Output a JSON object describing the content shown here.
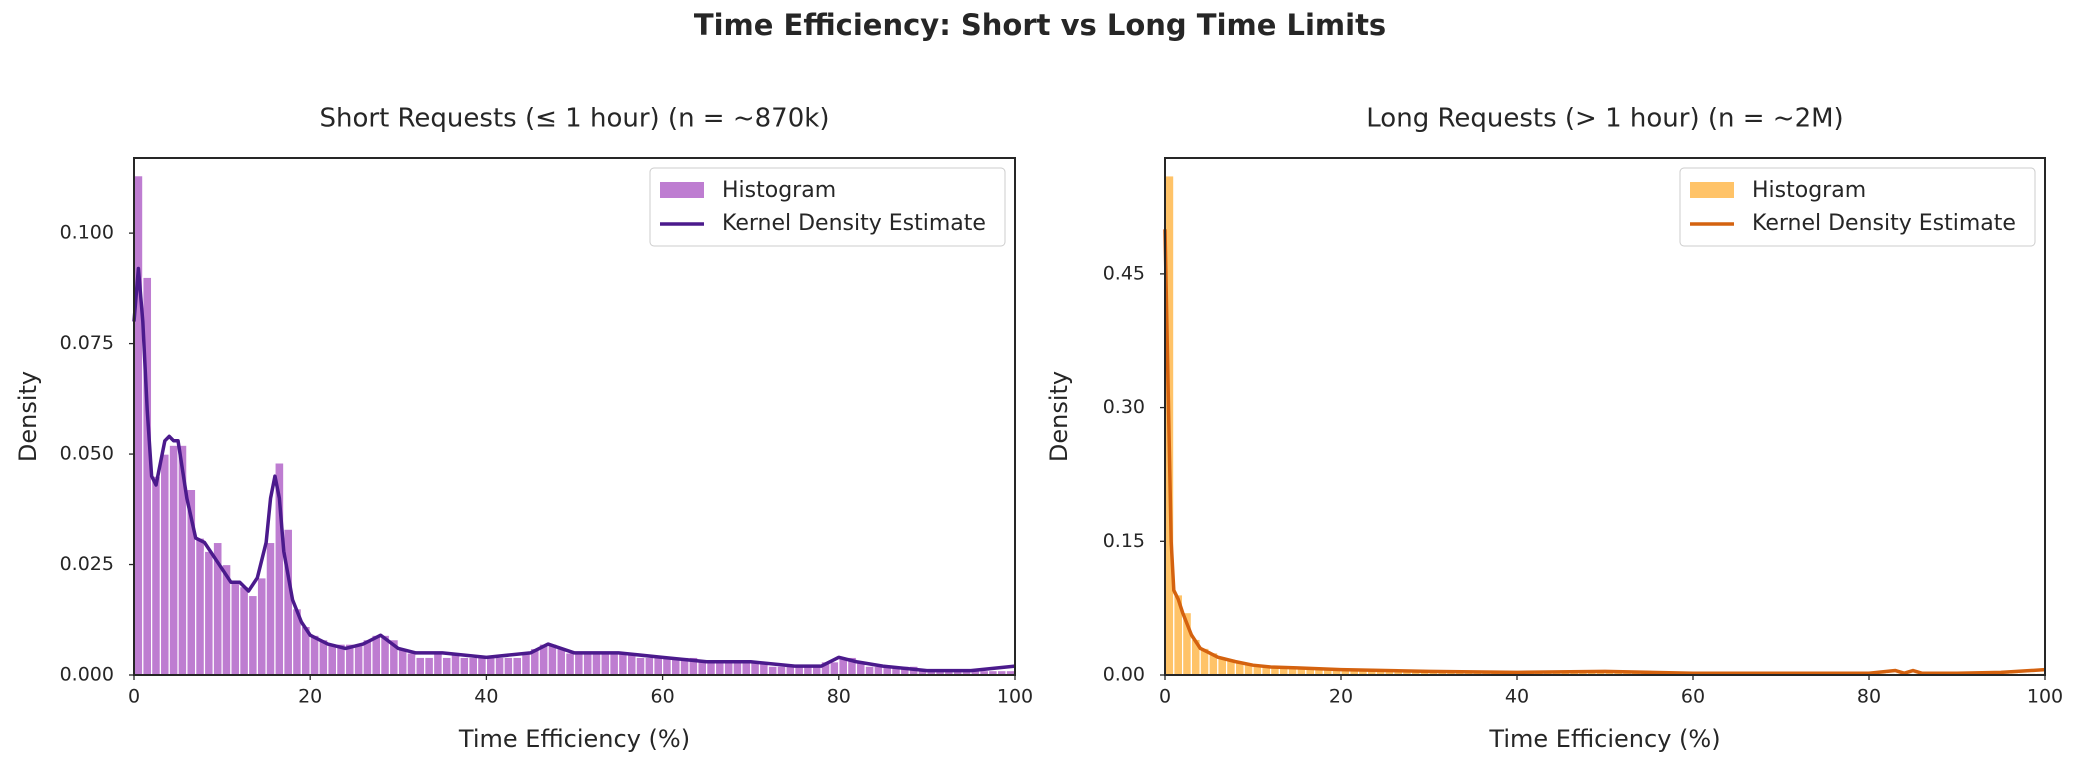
{
  "title": "Time Efficiency: Short vs Long Time Limits",
  "chart_data": [
    {
      "type": "histogram",
      "title": "Short Requests (≤ 1 hour) (n = ~870k)",
      "xlabel": "Time Efficiency (%)",
      "ylabel": "Density",
      "bins": [
        0,
        1,
        2,
        3,
        4,
        5,
        6,
        7,
        8,
        9,
        10,
        11,
        12,
        13,
        14,
        15,
        16,
        17,
        18,
        19,
        20,
        21,
        22,
        23,
        24,
        25,
        26,
        27,
        28,
        29,
        30,
        31,
        32,
        33,
        34,
        35,
        36,
        37,
        38,
        39,
        40,
        41,
        42,
        43,
        44,
        45,
        46,
        47,
        48,
        49,
        50,
        51,
        52,
        53,
        54,
        55,
        56,
        57,
        58,
        59,
        60,
        61,
        62,
        63,
        64,
        65,
        66,
        67,
        68,
        69,
        70,
        71,
        72,
        73,
        74,
        75,
        76,
        77,
        78,
        79,
        80,
        81,
        82,
        83,
        84,
        85,
        86,
        87,
        88,
        89,
        90,
        91,
        92,
        93,
        94,
        95,
        96,
        97,
        98,
        99,
        100
      ],
      "series": [
        {
          "name": "Histogram",
          "color": "#b366c9",
          "values": [
            0.113,
            0.09,
            0.045,
            0.05,
            0.052,
            0.052,
            0.042,
            0.031,
            0.028,
            0.03,
            0.025,
            0.021,
            0.02,
            0.018,
            0.022,
            0.03,
            0.048,
            0.033,
            0.015,
            0.011,
            0.009,
            0.008,
            0.007,
            0.007,
            0.007,
            0.007,
            0.008,
            0.009,
            0.009,
            0.008,
            0.006,
            0.005,
            0.004,
            0.004,
            0.005,
            0.004,
            0.005,
            0.004,
            0.004,
            0.004,
            0.004,
            0.004,
            0.004,
            0.004,
            0.005,
            0.006,
            0.007,
            0.007,
            0.006,
            0.005,
            0.005,
            0.005,
            0.005,
            0.005,
            0.005,
            0.005,
            0.005,
            0.004,
            0.004,
            0.004,
            0.004,
            0.004,
            0.004,
            0.004,
            0.003,
            0.003,
            0.003,
            0.003,
            0.003,
            0.003,
            0.003,
            0.003,
            0.002,
            0.002,
            0.002,
            0.002,
            0.002,
            0.002,
            0.003,
            0.003,
            0.004,
            0.004,
            0.003,
            0.002,
            0.002,
            0.002,
            0.002,
            0.002,
            0.002,
            0.001,
            0.001,
            0.001,
            0.001,
            0.001,
            0.001,
            0.001,
            0.001,
            0.001,
            0.001,
            0.001
          ]
        }
      ],
      "kde": {
        "name": "Kernel Density Estimate",
        "color": "#4b1a8c",
        "x": [
          0,
          0.5,
          1,
          1.5,
          2,
          2.5,
          3,
          3.5,
          4,
          4.5,
          5,
          6,
          7,
          8,
          9,
          10,
          11,
          12,
          13,
          14,
          15,
          15.5,
          16,
          16.5,
          17,
          18,
          19,
          20,
          22,
          24,
          26,
          28,
          30,
          32,
          35,
          40,
          45,
          47,
          50,
          55,
          60,
          65,
          70,
          75,
          78,
          80,
          82,
          85,
          90,
          95,
          100
        ],
        "values": [
          0.08,
          0.092,
          0.08,
          0.06,
          0.045,
          0.043,
          0.048,
          0.053,
          0.054,
          0.053,
          0.053,
          0.04,
          0.031,
          0.03,
          0.027,
          0.024,
          0.021,
          0.021,
          0.019,
          0.022,
          0.03,
          0.04,
          0.045,
          0.04,
          0.028,
          0.017,
          0.012,
          0.009,
          0.007,
          0.006,
          0.007,
          0.009,
          0.006,
          0.005,
          0.005,
          0.004,
          0.005,
          0.007,
          0.005,
          0.005,
          0.004,
          0.003,
          0.003,
          0.002,
          0.002,
          0.004,
          0.003,
          0.002,
          0.001,
          0.001,
          0.002
        ]
      },
      "xlim": [
        0,
        100
      ],
      "ylim": [
        0,
        0.117
      ],
      "xticks": [
        0,
        20,
        40,
        60,
        80,
        100
      ],
      "yticks": [
        {
          "value": 0,
          "label": "0.000"
        },
        {
          "value": 0.025,
          "label": "0.025"
        },
        {
          "value": 0.05,
          "label": "0.050"
        },
        {
          "value": 0.075,
          "label": "0.075"
        },
        {
          "value": 0.1,
          "label": "0.100"
        }
      ],
      "legend": "upper right"
    },
    {
      "type": "histogram",
      "title": "Long Requests (> 1 hour) (n = ~2M)",
      "xlabel": "Time Efficiency (%)",
      "ylabel": "Density",
      "bins": [
        0,
        1,
        2,
        3,
        4,
        5,
        6,
        7,
        8,
        9,
        10,
        11,
        12,
        13,
        14,
        15,
        16,
        17,
        18,
        19,
        20,
        21,
        22,
        23,
        24,
        25,
        26,
        27,
        28,
        29,
        30,
        31,
        32,
        33,
        34,
        35,
        36,
        37,
        38,
        39,
        40,
        41,
        42,
        43,
        44,
        45,
        46,
        47,
        48,
        49,
        50,
        51,
        52,
        53,
        54,
        55,
        56,
        57,
        58,
        59,
        60,
        61,
        62,
        63,
        64,
        65,
        66,
        67,
        68,
        69,
        70,
        71,
        72,
        73,
        74,
        75,
        76,
        77,
        78,
        79,
        80,
        81,
        82,
        83,
        84,
        85,
        86,
        87,
        88,
        89,
        90,
        91,
        92,
        93,
        94,
        95,
        96,
        97,
        98,
        99,
        100
      ],
      "series": [
        {
          "name": "Histogram",
          "color": "#ffb84d",
          "values": [
            0.56,
            0.09,
            0.07,
            0.04,
            0.03,
            0.025,
            0.02,
            0.018,
            0.015,
            0.013,
            0.011,
            0.01,
            0.009,
            0.009,
            0.008,
            0.008,
            0.007,
            0.007,
            0.006,
            0.006,
            0.005,
            0.005,
            0.005,
            0.005,
            0.005,
            0.005,
            0.004,
            0.004,
            0.004,
            0.004,
            0.004,
            0.004,
            0.004,
            0.004,
            0.004,
            0.004,
            0.004,
            0.004,
            0.004,
            0.004,
            0.003,
            0.003,
            0.003,
            0.003,
            0.003,
            0.003,
            0.003,
            0.003,
            0.003,
            0.003,
            0.003,
            0.003,
            0.003,
            0.003,
            0.003,
            0.003,
            0.003,
            0.003,
            0.003,
            0.003,
            0.002,
            0.002,
            0.002,
            0.002,
            0.002,
            0.002,
            0.002,
            0.002,
            0.002,
            0.002,
            0.002,
            0.002,
            0.002,
            0.002,
            0.002,
            0.002,
            0.002,
            0.002,
            0.002,
            0.002,
            0.002,
            0.002,
            0.002,
            0.002,
            0.002,
            0.002,
            0.002,
            0.002,
            0.002,
            0.002,
            0.002,
            0.002,
            0.002,
            0.002,
            0.002,
            0.002,
            0.002,
            0.002,
            0.002,
            0.002
          ]
        }
      ],
      "kde": {
        "name": "Kernel Density Estimate",
        "color": "#d4620f",
        "x": [
          0,
          0.3,
          0.7,
          1,
          1.5,
          2,
          3,
          4,
          5,
          6,
          8,
          10,
          12,
          15,
          20,
          25,
          30,
          40,
          50,
          60,
          70,
          80,
          83,
          84,
          85,
          86,
          90,
          95,
          100
        ],
        "values": [
          0.5,
          0.35,
          0.15,
          0.095,
          0.085,
          0.07,
          0.045,
          0.03,
          0.025,
          0.02,
          0.015,
          0.011,
          0.009,
          0.008,
          0.006,
          0.005,
          0.004,
          0.003,
          0.004,
          0.002,
          0.002,
          0.002,
          0.005,
          0.002,
          0.005,
          0.002,
          0.002,
          0.003,
          0.006
        ]
      },
      "xlim": [
        0,
        100
      ],
      "ylim": [
        0,
        0.58
      ],
      "xticks": [
        0,
        20,
        40,
        60,
        80,
        100
      ],
      "yticks": [
        {
          "value": 0,
          "label": "0.00"
        },
        {
          "value": 0.15,
          "label": "0.15"
        },
        {
          "value": 0.3,
          "label": "0.30"
        },
        {
          "value": 0.45,
          "label": "0.45"
        }
      ],
      "legend": "upper right"
    }
  ]
}
